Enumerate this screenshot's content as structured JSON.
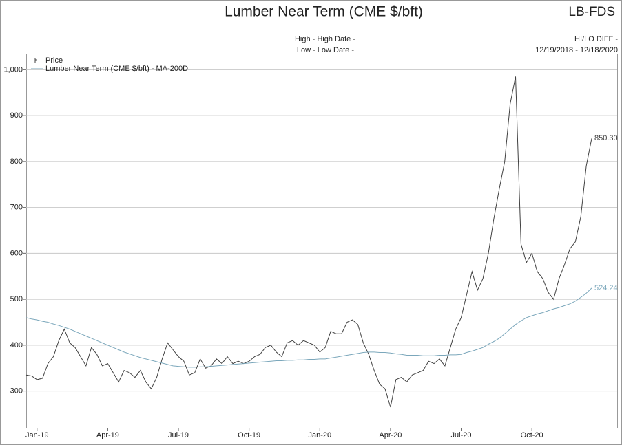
{
  "chart_data": {
    "type": "line",
    "title": "Lumber Near Term (CME $/bft)",
    "code": "LB-FDS",
    "header_left": [
      "High - High Date -",
      "Low - Low Date -"
    ],
    "header_right": [
      "HI/LO DIFF -",
      "12/19/2018 - 12/18/2020"
    ],
    "categories": [
      null,
      null,
      "Jan-19",
      null,
      null,
      null,
      null,
      null,
      null,
      null,
      null,
      null,
      null,
      null,
      null,
      "Apr-19",
      null,
      null,
      null,
      null,
      null,
      null,
      null,
      null,
      null,
      null,
      null,
      null,
      "Jul-19",
      null,
      null,
      null,
      null,
      null,
      null,
      null,
      null,
      null,
      null,
      null,
      null,
      "Oct-19",
      null,
      null,
      null,
      null,
      null,
      null,
      null,
      null,
      null,
      null,
      null,
      null,
      "Jan-20",
      null,
      null,
      null,
      null,
      null,
      null,
      null,
      null,
      null,
      null,
      null,
      null,
      "Apr-20",
      null,
      null,
      null,
      null,
      null,
      null,
      null,
      null,
      null,
      null,
      null,
      null,
      "Jul-20",
      null,
      null,
      null,
      null,
      null,
      null,
      null,
      null,
      null,
      null,
      null,
      null,
      "Oct-20",
      null,
      null,
      null,
      null,
      null,
      null,
      null,
      null,
      null,
      null,
      null
    ],
    "series": [
      {
        "name": "Price",
        "color": "#404040",
        "values": [
          335,
          333,
          325,
          328,
          360,
          375,
          410,
          435,
          405,
          395,
          375,
          355,
          395,
          380,
          355,
          360,
          340,
          320,
          345,
          340,
          330,
          345,
          320,
          305,
          330,
          370,
          405,
          390,
          375,
          365,
          335,
          340,
          370,
          350,
          355,
          370,
          360,
          375,
          360,
          365,
          360,
          365,
          375,
          380,
          395,
          400,
          385,
          375,
          405,
          410,
          400,
          410,
          405,
          400,
          385,
          395,
          430,
          425,
          425,
          450,
          455,
          445,
          405,
          380,
          345,
          315,
          305,
          265,
          325,
          330,
          320,
          335,
          340,
          345,
          365,
          360,
          370,
          355,
          395,
          435,
          460,
          510,
          560,
          520,
          545,
          600,
          675,
          740,
          800,
          925,
          985,
          620,
          580,
          600,
          560,
          545,
          515,
          500,
          545,
          575,
          610,
          625,
          680,
          790,
          850.3
        ],
        "value_labels": [
          null,
          null,
          null,
          null,
          null,
          null,
          null,
          null,
          null,
          null,
          null,
          null,
          null,
          null,
          null,
          null,
          null,
          null,
          null,
          null,
          null,
          null,
          null,
          null,
          null,
          null,
          null,
          null,
          null,
          null,
          null,
          null,
          null,
          null,
          null,
          null,
          null,
          null,
          null,
          null,
          null,
          null,
          null,
          null,
          null,
          null,
          null,
          null,
          null,
          null,
          null,
          null,
          null,
          null,
          null,
          null,
          null,
          null,
          null,
          null,
          null,
          null,
          null,
          null,
          null,
          null,
          null,
          null,
          null,
          null,
          null,
          null,
          null,
          null,
          null,
          null,
          null,
          null,
          null,
          null,
          null,
          null,
          null,
          null,
          null,
          null,
          null,
          null,
          null,
          null,
          null,
          null,
          null,
          null,
          null,
          null,
          null,
          null,
          null,
          null,
          null,
          null,
          null,
          null,
          "850.30"
        ]
      },
      {
        "name": "Lumber Near Term (CME $/bft) - MA-200D",
        "color": "#7ba7bb",
        "values": [
          460,
          457,
          455,
          452,
          450,
          446,
          443,
          439,
          435,
          430,
          425,
          420,
          415,
          410,
          405,
          400,
          395,
          390,
          385,
          381,
          377,
          373,
          370,
          367,
          364,
          361,
          358,
          355,
          354,
          353,
          352,
          352,
          353,
          353,
          354,
          355,
          356,
          357,
          358,
          359,
          360,
          361,
          362,
          363,
          364,
          365,
          366,
          366,
          367,
          367,
          368,
          368,
          369,
          369,
          370,
          370,
          372,
          374,
          376,
          378,
          380,
          382,
          384,
          385,
          385,
          384,
          384,
          383,
          381,
          380,
          378,
          378,
          378,
          377,
          377,
          377,
          378,
          378,
          379,
          379,
          380,
          384,
          387,
          391,
          395,
          402,
          408,
          415,
          425,
          435,
          445,
          453,
          460,
          464,
          468,
          471,
          475,
          479,
          482,
          486,
          490,
          496,
          504,
          513,
          524.24
        ],
        "value_labels": [
          null,
          null,
          null,
          null,
          null,
          null,
          null,
          null,
          null,
          null,
          null,
          null,
          null,
          null,
          null,
          null,
          null,
          null,
          null,
          null,
          null,
          null,
          null,
          null,
          null,
          null,
          null,
          null,
          null,
          null,
          null,
          null,
          null,
          null,
          null,
          null,
          null,
          null,
          null,
          null,
          null,
          null,
          null,
          null,
          null,
          null,
          null,
          null,
          null,
          null,
          null,
          null,
          null,
          null,
          null,
          null,
          null,
          null,
          null,
          null,
          null,
          null,
          null,
          null,
          null,
          null,
          null,
          null,
          null,
          null,
          null,
          null,
          null,
          null,
          null,
          null,
          null,
          null,
          null,
          null,
          null,
          null,
          null,
          null,
          null,
          null,
          null,
          null,
          null,
          null,
          null,
          null,
          null,
          null,
          null,
          null,
          null,
          null,
          null,
          null,
          null,
          null,
          null,
          null,
          "524.24"
        ]
      }
    ],
    "ylim": [
      220,
      1035
    ],
    "yticks": [
      300,
      400,
      500,
      600,
      700,
      800,
      900,
      {
        "value": 1000,
        "label": "1,000"
      }
    ],
    "grid": true
  }
}
